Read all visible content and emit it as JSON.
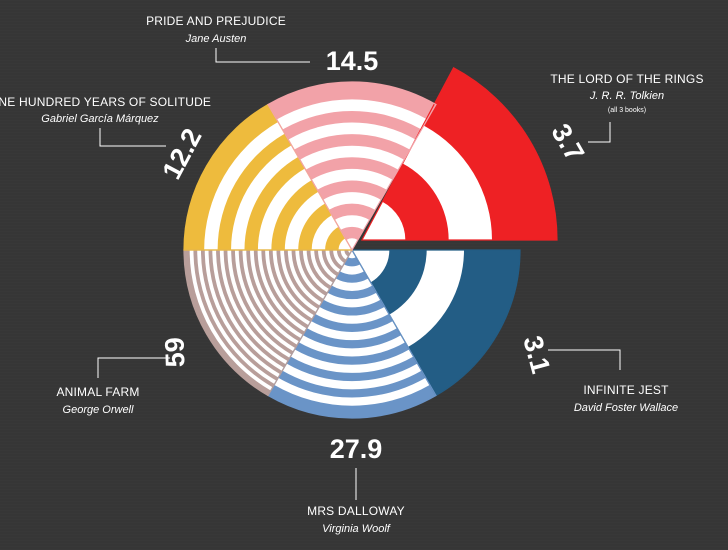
{
  "chart_data": {
    "type": "pie",
    "slices": [
      {
        "key": "lotr",
        "title": "THE LORD OF THE RINGS",
        "author": "J. R. R. Tolkien",
        "note": "(all 3 books)",
        "value": 3.7,
        "color": "#ee2124",
        "rings": 2
      },
      {
        "key": "jest",
        "title": "INFINITE JEST",
        "author": "David Foster Wallace",
        "value": 3.1,
        "color": "#235d85",
        "rings": 2
      },
      {
        "key": "dalloway",
        "title": "MRS DALLOWAY",
        "author": "Virginia Woolf",
        "value": 27.9,
        "color": "#6a94c7",
        "rings": 10
      },
      {
        "key": "farm",
        "title": "ANIMAL FARM",
        "author": "George Orwell",
        "value": 59,
        "color": "#b89e9a",
        "rings": 22
      },
      {
        "key": "solitude",
        "title": "ONE HUNDRED YEARS OF SOLITUDE",
        "author": "Gabriel García Márquez",
        "value": 12.2,
        "color": "#eebb3d",
        "rings": 6
      },
      {
        "key": "pride",
        "title": "PRIDE AND PREJUDICE",
        "author": "Jane Austen",
        "value": 14.5,
        "color": "#f2a2a8",
        "rings": 7
      }
    ],
    "stripe_color": "#ffffff"
  }
}
